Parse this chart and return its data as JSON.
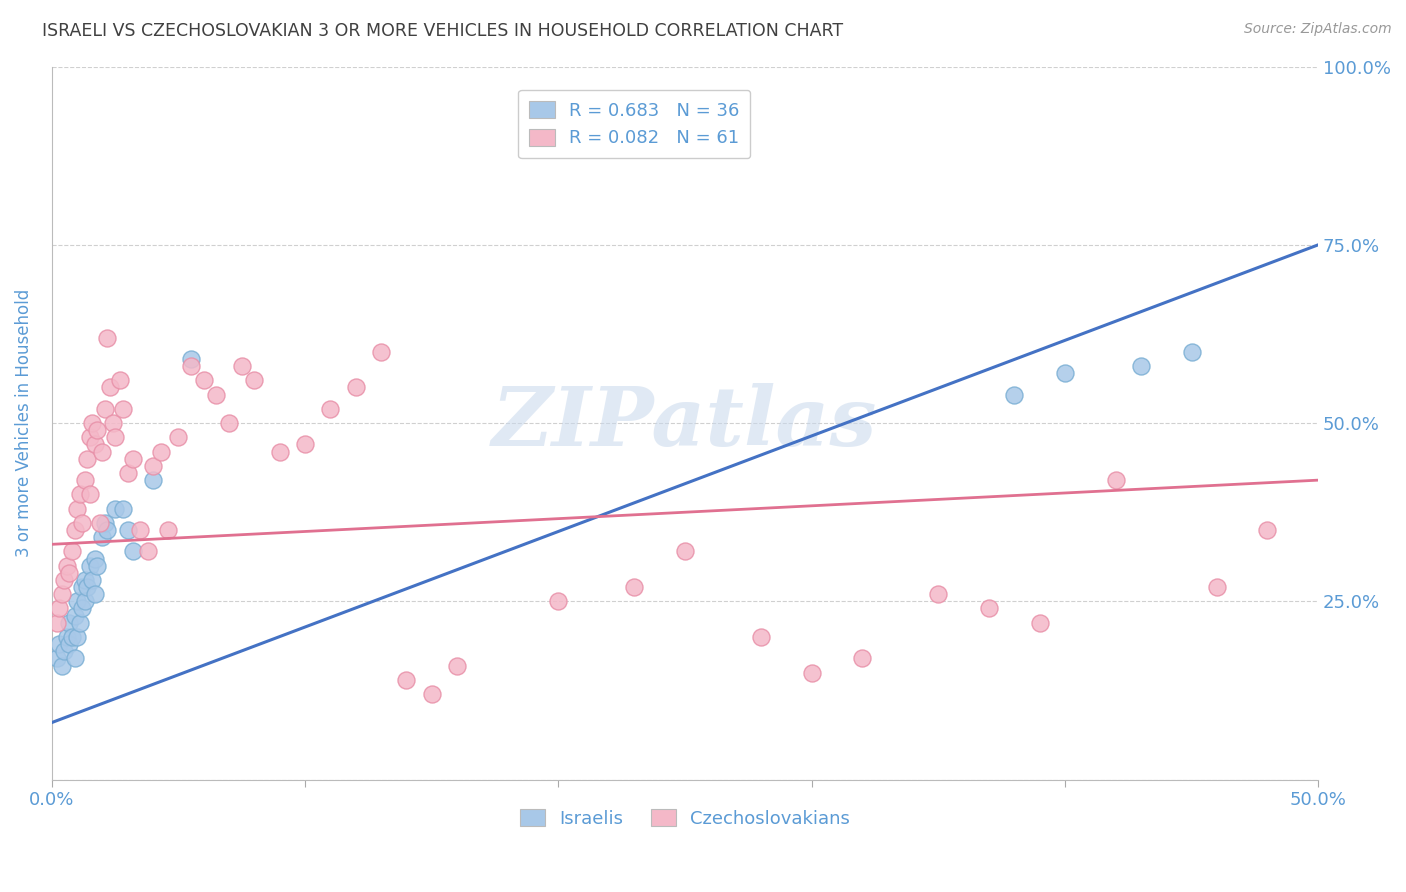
{
  "title": "ISRAELI VS CZECHOSLOVAKIAN 3 OR MORE VEHICLES IN HOUSEHOLD CORRELATION CHART",
  "source": "Source: ZipAtlas.com",
  "ylabel": "3 or more Vehicles in Household",
  "watermark": "ZIPatlas",
  "xlim": [
    0.0,
    0.5
  ],
  "ylim": [
    0.0,
    1.0
  ],
  "xticks": [
    0.0,
    0.1,
    0.2,
    0.3,
    0.4,
    0.5
  ],
  "xticklabels": [
    "0.0%",
    "",
    "",
    "",
    "",
    "50.0%"
  ],
  "yticks": [
    0.0,
    0.25,
    0.5,
    0.75,
    1.0
  ],
  "yticklabels": [
    "",
    "25.0%",
    "50.0%",
    "75.0%",
    "100.0%"
  ],
  "israeli_R": 0.683,
  "israeli_N": 36,
  "czech_R": 0.082,
  "czech_N": 61,
  "israeli_color": "#a8c8e8",
  "israeli_edge_color": "#7bafd4",
  "czech_color": "#f4b8c8",
  "czech_edge_color": "#e890a8",
  "israeli_line_color": "#4472c4",
  "czech_line_color": "#e07090",
  "title_color": "#404040",
  "axis_label_color": "#5b9bd5",
  "tick_color": "#5b9bd5",
  "grid_color": "#d0d0d0",
  "legend_label_color": "#5b9bd5",
  "israeli_scatter_x": [
    0.002,
    0.003,
    0.004,
    0.005,
    0.006,
    0.007,
    0.007,
    0.008,
    0.009,
    0.009,
    0.01,
    0.01,
    0.011,
    0.012,
    0.012,
    0.013,
    0.013,
    0.014,
    0.015,
    0.016,
    0.017,
    0.017,
    0.018,
    0.02,
    0.021,
    0.022,
    0.025,
    0.028,
    0.03,
    0.032,
    0.04,
    0.055,
    0.38,
    0.4,
    0.43,
    0.45
  ],
  "israeli_scatter_y": [
    0.17,
    0.19,
    0.16,
    0.18,
    0.2,
    0.19,
    0.22,
    0.2,
    0.17,
    0.23,
    0.2,
    0.25,
    0.22,
    0.24,
    0.27,
    0.25,
    0.28,
    0.27,
    0.3,
    0.28,
    0.26,
    0.31,
    0.3,
    0.34,
    0.36,
    0.35,
    0.38,
    0.38,
    0.35,
    0.32,
    0.42,
    0.59,
    0.54,
    0.57,
    0.58,
    0.6
  ],
  "czech_scatter_x": [
    0.002,
    0.003,
    0.004,
    0.005,
    0.006,
    0.007,
    0.008,
    0.009,
    0.01,
    0.011,
    0.012,
    0.013,
    0.014,
    0.015,
    0.015,
    0.016,
    0.017,
    0.018,
    0.019,
    0.02,
    0.021,
    0.022,
    0.023,
    0.024,
    0.025,
    0.027,
    0.028,
    0.03,
    0.032,
    0.035,
    0.038,
    0.04,
    0.043,
    0.046,
    0.05,
    0.055,
    0.06,
    0.065,
    0.07,
    0.075,
    0.08,
    0.09,
    0.1,
    0.11,
    0.12,
    0.13,
    0.14,
    0.15,
    0.16,
    0.2,
    0.23,
    0.25,
    0.28,
    0.3,
    0.32,
    0.35,
    0.37,
    0.39,
    0.42,
    0.46,
    0.48
  ],
  "czech_scatter_y": [
    0.22,
    0.24,
    0.26,
    0.28,
    0.3,
    0.29,
    0.32,
    0.35,
    0.38,
    0.4,
    0.36,
    0.42,
    0.45,
    0.48,
    0.4,
    0.5,
    0.47,
    0.49,
    0.36,
    0.46,
    0.52,
    0.62,
    0.55,
    0.5,
    0.48,
    0.56,
    0.52,
    0.43,
    0.45,
    0.35,
    0.32,
    0.44,
    0.46,
    0.35,
    0.48,
    0.58,
    0.56,
    0.54,
    0.5,
    0.58,
    0.56,
    0.46,
    0.47,
    0.52,
    0.55,
    0.6,
    0.14,
    0.12,
    0.16,
    0.25,
    0.27,
    0.32,
    0.2,
    0.15,
    0.17,
    0.26,
    0.24,
    0.22,
    0.42,
    0.27,
    0.35
  ],
  "israeli_line_x": [
    0.0,
    0.5
  ],
  "israeli_line_y": [
    0.08,
    0.75
  ],
  "czech_line_x": [
    0.0,
    0.5
  ],
  "czech_line_y": [
    0.33,
    0.42
  ],
  "background_color": "#ffffff",
  "legend_box_color_israeli": "#a8c8e8",
  "legend_box_color_czech": "#f4b8c8"
}
